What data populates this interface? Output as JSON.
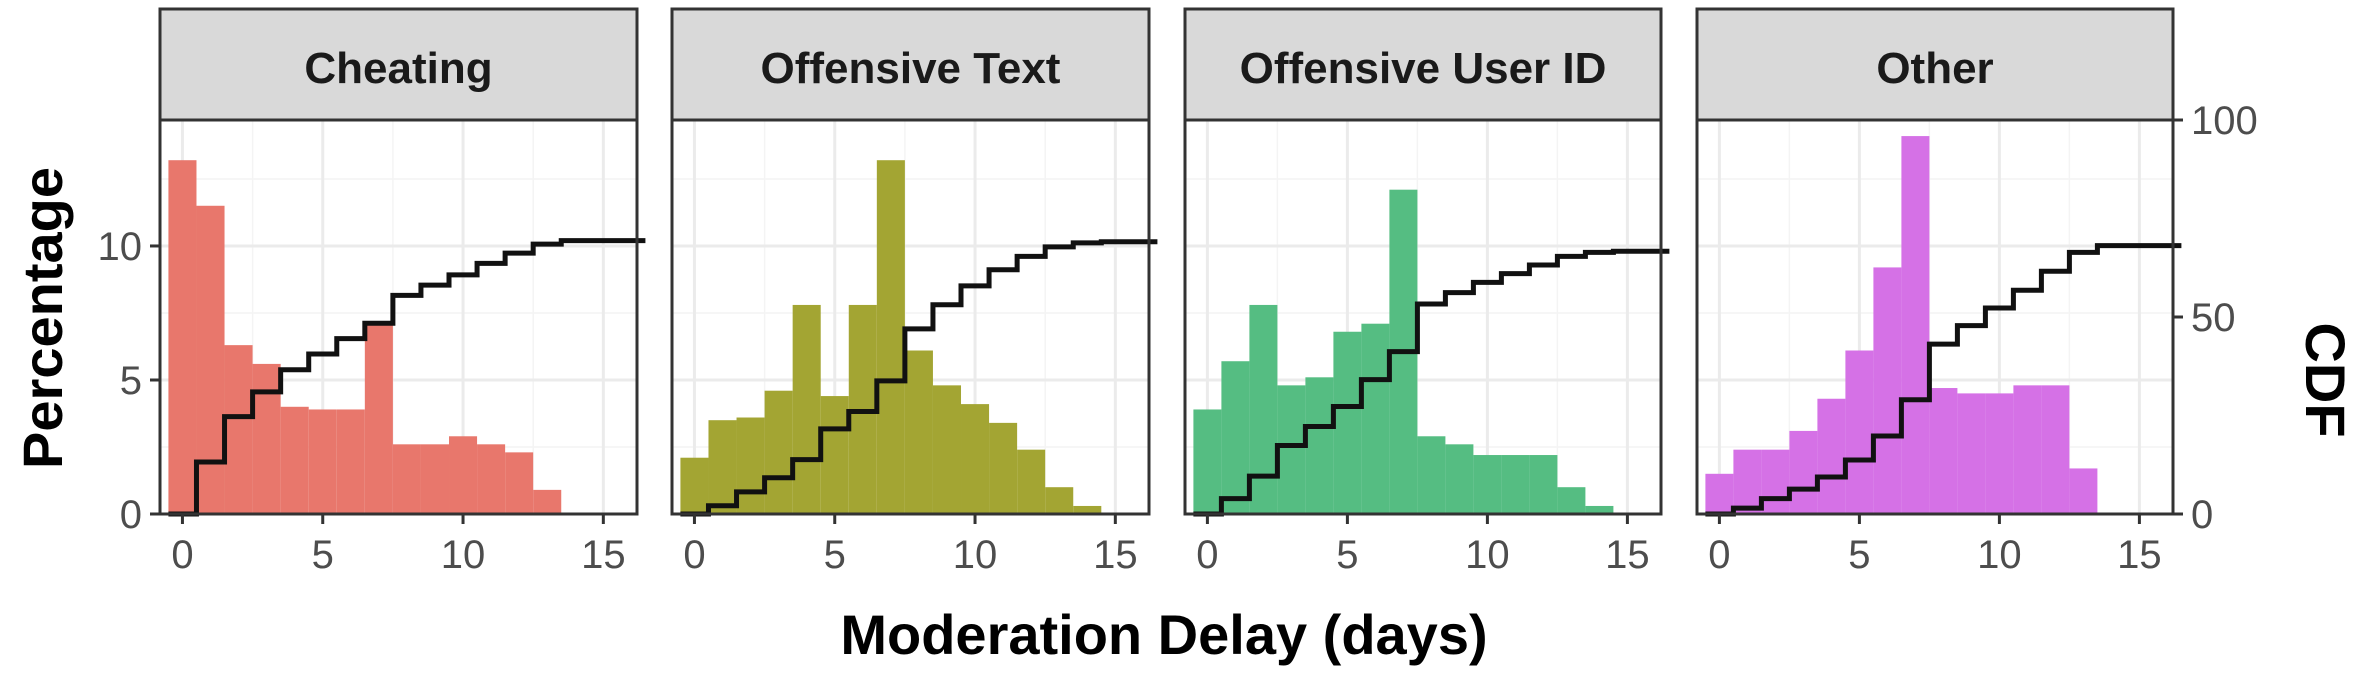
{
  "chart_data": {
    "type": "bar",
    "subtype": "faceted histogram with CDF step overlay (secondary axis)",
    "xlabel": "Moderation Delay (days)",
    "ylabel": "Percentage",
    "y2label": "CDF",
    "xlim": [
      -0.8,
      16.2
    ],
    "ylim": [
      0,
      14.7
    ],
    "y2lim": [
      0,
      100
    ],
    "x_ticks": [
      0,
      5,
      10,
      15
    ],
    "y_ticks": [
      0,
      5,
      10
    ],
    "y2_ticks": [
      0,
      50,
      100
    ],
    "bin_width": 1,
    "bin_starts": [
      -0.5,
      0.5,
      1.5,
      2.5,
      3.5,
      4.5,
      5.5,
      6.5,
      7.5,
      8.5,
      9.5,
      10.5,
      11.5,
      12.5,
      13.5,
      14.5,
      15.5
    ],
    "grid": true,
    "legend": "none",
    "facets": [
      {
        "name": "Cheating",
        "color": "#e8776c",
        "values": [
          13.2,
          11.5,
          6.3,
          5.6,
          4.0,
          3.9,
          3.9,
          7.1,
          2.6,
          2.6,
          2.9,
          2.6,
          2.3,
          0.9,
          0,
          0,
          0
        ],
        "cdf": [
          0,
          13.2,
          24.7,
          31.0,
          36.6,
          40.6,
          44.5,
          48.4,
          55.5,
          58.1,
          60.7,
          63.6,
          66.2,
          68.5,
          69.4,
          69.4,
          69.4
        ]
      },
      {
        "name": "Offensive Text",
        "color": "#a3a533",
        "values": [
          2.1,
          3.5,
          3.6,
          4.6,
          7.8,
          4.4,
          7.8,
          13.2,
          6.1,
          4.8,
          4.1,
          3.4,
          2.4,
          1.0,
          0.3,
          0,
          0
        ],
        "cdf": [
          0,
          2.1,
          5.6,
          9.2,
          13.8,
          21.6,
          26.0,
          33.8,
          47.0,
          53.1,
          57.9,
          62.0,
          65.4,
          67.8,
          68.8,
          69.1,
          69.1
        ]
      },
      {
        "name": "Offensive User ID",
        "color": "#55bd82",
        "values": [
          3.9,
          5.7,
          7.8,
          4.8,
          5.1,
          6.8,
          7.1,
          12.1,
          2.9,
          2.6,
          2.2,
          2.2,
          2.2,
          1.0,
          0.3,
          0,
          0
        ],
        "cdf": [
          0,
          3.9,
          9.6,
          17.4,
          22.2,
          27.3,
          34.1,
          41.2,
          53.3,
          56.2,
          58.8,
          61.0,
          63.2,
          65.4,
          66.4,
          66.7,
          66.7
        ]
      },
      {
        "name": "Other",
        "color": "#d571e6",
        "values": [
          1.5,
          2.4,
          2.4,
          3.1,
          4.3,
          6.1,
          9.2,
          14.1,
          4.7,
          4.5,
          4.5,
          4.8,
          4.8,
          1.7,
          0,
          0,
          0
        ],
        "cdf": [
          0,
          1.5,
          3.9,
          6.3,
          9.4,
          13.7,
          19.8,
          29.0,
          43.1,
          47.8,
          52.3,
          56.8,
          61.6,
          66.4,
          68.1,
          68.1,
          68.1
        ]
      }
    ]
  }
}
